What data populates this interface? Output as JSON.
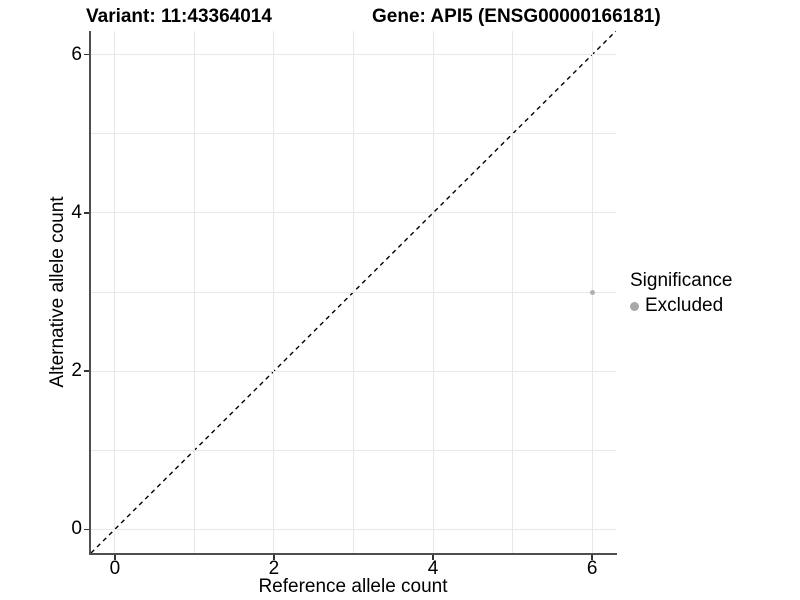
{
  "figure": {
    "background": "#ffffff"
  },
  "chart_data": {
    "type": "scatter",
    "title_left": "Variant: 11:43364014",
    "title_right": "Gene: API5 (ENSG00000166181)",
    "xlabel": "Reference allele count",
    "ylabel": "Alternative allele count",
    "xlim": [
      -0.3,
      6.3
    ],
    "ylim": [
      -0.3,
      6.3
    ],
    "x_ticks": [
      0,
      2,
      4,
      6
    ],
    "y_ticks": [
      0,
      2,
      4,
      6
    ],
    "x_gridlines": [
      0,
      1,
      2,
      3,
      4,
      5,
      6
    ],
    "y_gridlines": [
      0,
      1,
      2,
      3,
      4,
      5,
      6
    ],
    "grid": true,
    "identity_line": {
      "from_xy": [
        -0.3,
        -0.3
      ],
      "to_xy": [
        6.3,
        6.3
      ],
      "style": "dashed",
      "color": "#000000"
    },
    "points": [
      {
        "x": 6,
        "y": 3,
        "series": "Excluded"
      }
    ],
    "legend": {
      "title": "Significance",
      "position": "right",
      "items": [
        {
          "label": "Excluded",
          "color": "#a8a8a8"
        }
      ]
    },
    "colors": {
      "point_excluded": "#b0b0b0",
      "grid": "#e8e8e8",
      "axis_line": "#4f4f4f",
      "tick": "#333333",
      "text": "#000000"
    }
  }
}
